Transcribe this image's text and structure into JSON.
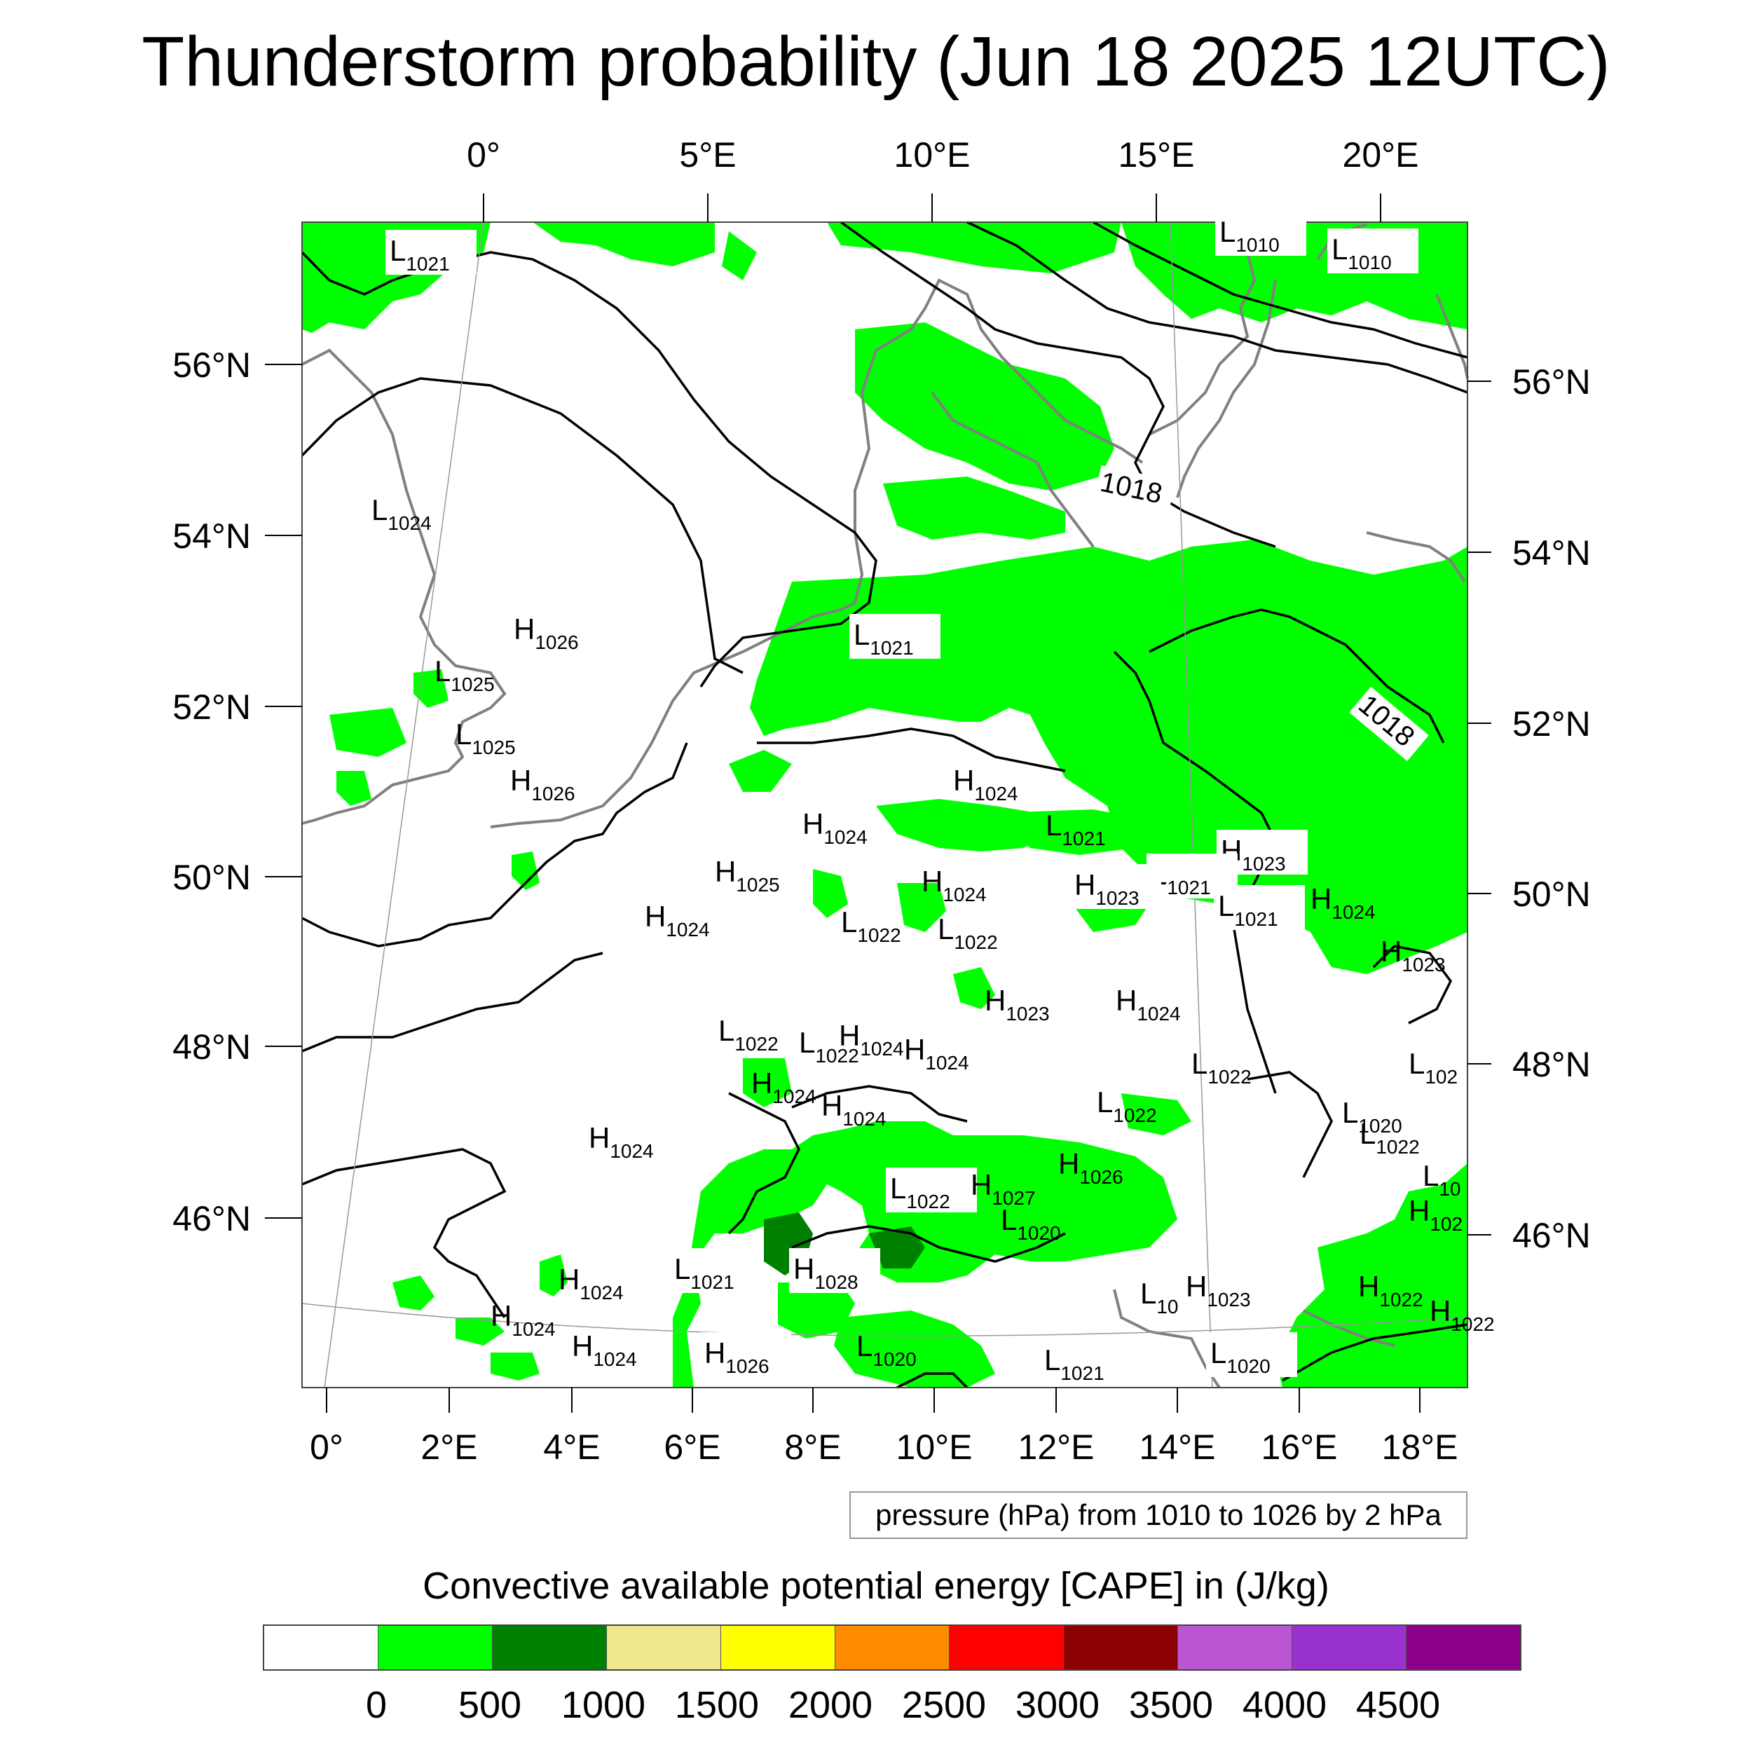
{
  "title": "Thunderstorm probability (Jun 18 2025 12UTC)",
  "top_lon_labels": [
    "0°",
    "5°E",
    "10°E",
    "15°E",
    "20°E"
  ],
  "bottom_lon_labels": [
    "0°",
    "2°E",
    "4°E",
    "6°E",
    "8°E",
    "10°E",
    "12°E",
    "14°E",
    "16°E",
    "18°E"
  ],
  "left_lat_labels": [
    "56°N",
    "54°N",
    "52°N",
    "50°N",
    "48°N",
    "46°N"
  ],
  "right_lat_labels": [
    "56°N",
    "54°N",
    "52°N",
    "50°N",
    "48°N",
    "46°N"
  ],
  "isobar_labels": [
    "1018",
    "1018"
  ],
  "pressure_centers": [
    {
      "type": "L",
      "value": "1021"
    },
    {
      "type": "L",
      "value": "1010"
    },
    {
      "type": "L",
      "value": "1010"
    },
    {
      "type": "L",
      "value": "1024"
    },
    {
      "type": "H",
      "value": "1026"
    },
    {
      "type": "L",
      "value": "1025"
    },
    {
      "type": "L",
      "value": "1025"
    },
    {
      "type": "H",
      "value": "1026"
    },
    {
      "type": "L",
      "value": "1021"
    },
    {
      "type": "H",
      "value": "1024"
    },
    {
      "type": "H",
      "value": "1024"
    },
    {
      "type": "L",
      "value": "1021"
    },
    {
      "type": "H",
      "value": "1023"
    },
    {
      "type": "H",
      "value": "1025"
    },
    {
      "type": "H",
      "value": "1024"
    },
    {
      "type": "H",
      "value": "1024"
    },
    {
      "type": "L",
      "value": "1021"
    },
    {
      "type": "H",
      "value": "1023"
    },
    {
      "type": "H",
      "value": "1024"
    },
    {
      "type": "L",
      "value": "1022"
    },
    {
      "type": "L",
      "value": "1022"
    },
    {
      "type": "L",
      "value": "1021"
    },
    {
      "type": "H",
      "value": "1023"
    },
    {
      "type": "H",
      "value": "1023"
    },
    {
      "type": "H",
      "value": "1024"
    },
    {
      "type": "L",
      "value": "1022"
    },
    {
      "type": "L",
      "value": "1022"
    },
    {
      "type": "H",
      "value": "1024"
    },
    {
      "type": "H",
      "value": "1024"
    },
    {
      "type": "L",
      "value": "1022"
    },
    {
      "type": "L",
      "value": "102"
    },
    {
      "type": "H",
      "value": "1024"
    },
    {
      "type": "H",
      "value": "1024"
    },
    {
      "type": "L",
      "value": "1022"
    },
    {
      "type": "L",
      "value": "1020"
    },
    {
      "type": "H",
      "value": "1024"
    },
    {
      "type": "L",
      "value": "1022"
    },
    {
      "type": "H",
      "value": "1026"
    },
    {
      "type": "L",
      "value": "1022"
    },
    {
      "type": "H",
      "value": "1027"
    },
    {
      "type": "L",
      "value": "10"
    },
    {
      "type": "L",
      "value": "1020"
    },
    {
      "type": "H",
      "value": "102"
    },
    {
      "type": "H",
      "value": "1024"
    },
    {
      "type": "L",
      "value": "1021"
    },
    {
      "type": "H",
      "value": "1028"
    },
    {
      "type": "H",
      "value": "1024"
    },
    {
      "type": "L",
      "value": "10"
    },
    {
      "type": "H",
      "value": "1023"
    },
    {
      "type": "H",
      "value": "1022"
    },
    {
      "type": "H",
      "value": "1024"
    },
    {
      "type": "H",
      "value": "1026"
    },
    {
      "type": "L",
      "value": "1020"
    },
    {
      "type": "L",
      "value": "1021"
    },
    {
      "type": "L",
      "value": "1020"
    },
    {
      "type": "H",
      "value": "1022"
    }
  ],
  "pressure_note": "pressure (hPa) from 1010 to 1026 by 2 hPa",
  "colorbar_title": "Convective available potential energy [CAPE] in (J/kg)",
  "colorbar_colors": [
    "#ffffff",
    "#00ff00",
    "#008000",
    "#f0e68c",
    "#ffff00",
    "#ff8c00",
    "#ff0000",
    "#8b0000",
    "#ba55d3",
    "#9932cc",
    "#8b008b"
  ],
  "colorbar_ticks": [
    "0",
    "500",
    "1000",
    "1500",
    "2000",
    "2500",
    "3000",
    "3500",
    "4000",
    "4500"
  ],
  "colors": {
    "cape_low": "#00ff00",
    "cape_mid": "#008000",
    "coast": "#808080",
    "isobar": "#000000"
  }
}
